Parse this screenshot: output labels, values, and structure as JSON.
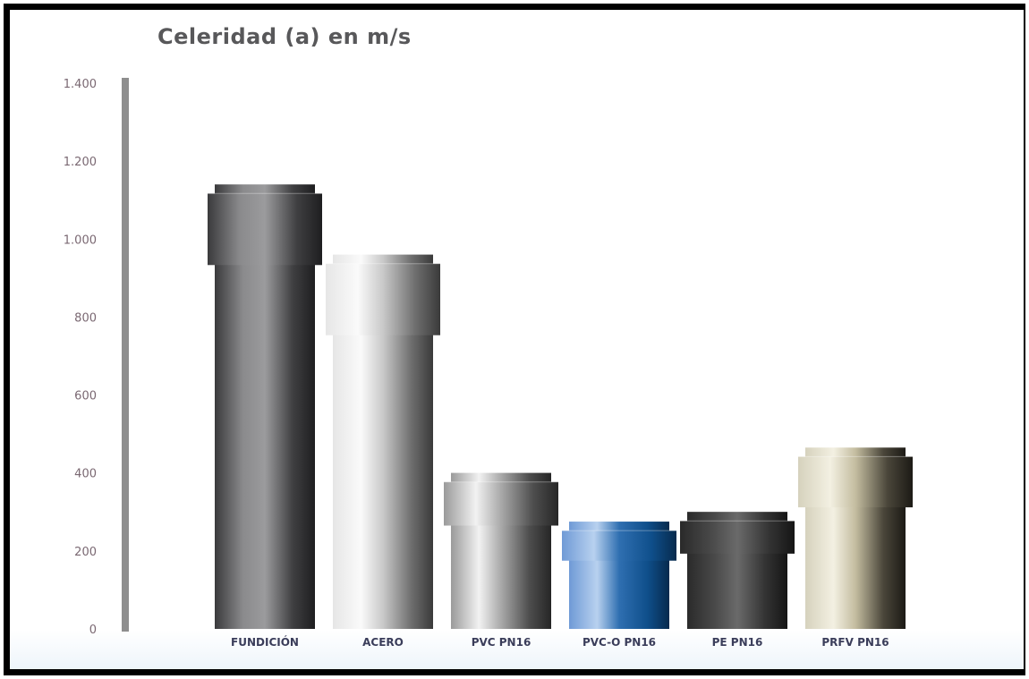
{
  "chart_data": {
    "type": "bar",
    "title": "Celeridad (a) en m/s",
    "xlabel": "",
    "ylabel": "",
    "ylim": [
      0,
      1400
    ],
    "yticks": [
      {
        "value": 0,
        "label": "0"
      },
      {
        "value": 200,
        "label": "200"
      },
      {
        "value": 400,
        "label": "400"
      },
      {
        "value": 600,
        "label": "600"
      },
      {
        "value": 800,
        "label": "800"
      },
      {
        "value": 1000,
        "label": "1.000"
      },
      {
        "value": 1200,
        "label": "1.200"
      },
      {
        "value": 1400,
        "label": "1.400"
      }
    ],
    "categories": [
      "FUNDICIÓN",
      "ACERO",
      "PVC PN16",
      "PVC-O PN16",
      "PE PN16",
      "PRFV PN16"
    ],
    "values": [
      1140,
      960,
      400,
      275,
      300,
      465
    ],
    "grid": false,
    "legend": "none",
    "bar_colors": [
      [
        "#3a3a3c",
        "#8a8a8c",
        "#9b9b9d",
        "#3f3f41",
        "#1e1e20"
      ],
      [
        "#e6e6e6",
        "#fafafa",
        "#c9c9c9",
        "#6f6f6f",
        "#3a3a3a"
      ],
      [
        "#9a9a9a",
        "#f2f2f2",
        "#a9a9a9",
        "#4e4e4e",
        "#262626"
      ],
      [
        "#6f9ad6",
        "#b8d1ef",
        "#2f6fb1",
        "#0f4f8b",
        "#072a4d"
      ],
      [
        "#2a2a2a",
        "#4a4a4a",
        "#6a6a6a",
        "#333333",
        "#151515"
      ],
      [
        "#d6d2bd",
        "#f3f0e2",
        "#c4bda0",
        "#4a463a",
        "#1c1a15"
      ]
    ]
  }
}
